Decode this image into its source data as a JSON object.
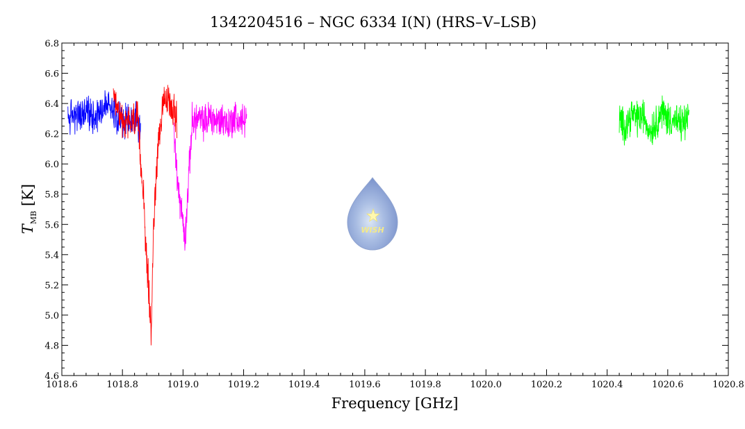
{
  "chart_data": {
    "type": "line",
    "title": "1342204516 – NGC 6334 I(N) (HRS–V–LSB)",
    "xlabel": "Frequency [GHz]",
    "ylabel_main": "T",
    "ylabel_sub": "MB",
    "ylabel_unit": "[K]",
    "xlim": [
      1018.6,
      1020.8
    ],
    "ylim": [
      4.6,
      6.8
    ],
    "x_ticks": [
      "1018.6",
      "1018.8",
      "1019.0",
      "1019.2",
      "1019.4",
      "1019.6",
      "1019.8",
      "1020.0",
      "1020.2",
      "1020.4",
      "1020.6",
      "1020.8"
    ],
    "y_ticks": [
      "4.6",
      "4.8",
      "5.0",
      "5.2",
      "5.4",
      "5.6",
      "5.8",
      "6.0",
      "6.2",
      "6.4",
      "6.6",
      "6.8"
    ],
    "grid": false,
    "logo_text": "WISH",
    "series": [
      {
        "color": "#0000ff",
        "x": [
          1018.62,
          1018.64,
          1018.66,
          1018.68,
          1018.7,
          1018.72,
          1018.74,
          1018.76,
          1018.78,
          1018.8,
          1018.82,
          1018.84,
          1018.86
        ],
        "y": [
          6.3,
          6.33,
          6.31,
          6.35,
          6.32,
          6.34,
          6.38,
          6.4,
          6.33,
          6.28,
          6.27,
          6.3,
          6.22
        ]
      },
      {
        "color": "#ff0000",
        "x": [
          1018.77,
          1018.79,
          1018.81,
          1018.83,
          1018.85,
          1018.86,
          1018.87,
          1018.88,
          1018.885,
          1018.89,
          1018.895,
          1018.9,
          1018.91,
          1018.92,
          1018.94,
          1018.96,
          1018.98
        ],
        "y": [
          6.4,
          6.32,
          6.26,
          6.28,
          6.3,
          6.02,
          5.8,
          5.32,
          5.25,
          5.05,
          4.85,
          5.4,
          5.9,
          6.2,
          6.42,
          6.4,
          6.3
        ]
      },
      {
        "color": "#ff00ff",
        "x": [
          1018.97,
          1018.98,
          1018.99,
          1019.0,
          1019.005,
          1019.01,
          1019.02,
          1019.03,
          1019.05,
          1019.07,
          1019.09,
          1019.11,
          1019.13,
          1019.15,
          1019.17,
          1019.19,
          1019.21
        ],
        "y": [
          6.15,
          5.95,
          5.75,
          5.62,
          5.5,
          5.6,
          5.95,
          6.28,
          6.3,
          6.27,
          6.32,
          6.28,
          6.3,
          6.26,
          6.31,
          6.28,
          6.3
        ]
      },
      {
        "color": "#00ff00",
        "x": [
          1020.44,
          1020.46,
          1020.48,
          1020.5,
          1020.52,
          1020.54,
          1020.56,
          1020.58,
          1020.6,
          1020.62,
          1020.64,
          1020.66,
          1020.67
        ],
        "y": [
          6.28,
          6.25,
          6.33,
          6.3,
          6.32,
          6.22,
          6.27,
          6.35,
          6.3,
          6.29,
          6.26,
          6.28,
          6.32
        ]
      }
    ]
  }
}
